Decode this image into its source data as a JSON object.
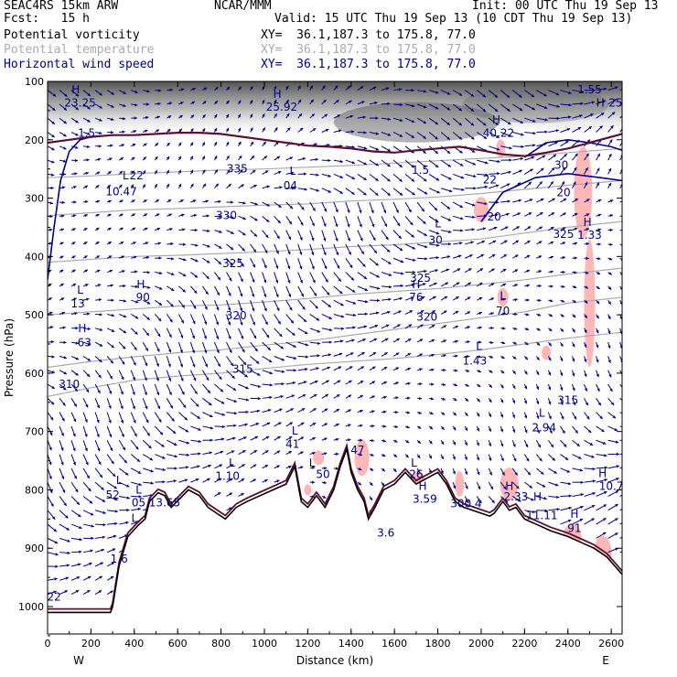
{
  "header": {
    "model": "SEAC4RS 15km ARW",
    "org": "NCAR/MMM",
    "init": "Init: 00 UTC Thu 19 Sep 13",
    "fcst": "Fcst:   15 h",
    "valid": "Valid: 15 UTC Thu 19 Sep 13 (10 CDT Thu 19 Sep 13)"
  },
  "fields": [
    {
      "name": "Potential vorticity",
      "xy": "XY=  36.1,187.3 to 175.8, 77.0"
    },
    {
      "name": "Potential temperature",
      "xy": "XY=  36.1,187.3 to 175.8, 77.0"
    },
    {
      "name": "Horizontal wind speed",
      "xy": "XY=  36.1,187.3 to 175.8, 77.0"
    }
  ],
  "colors": {
    "pv": "#000000",
    "theta": "#aaaaaa",
    "wind": "#000080",
    "pv_contour": "#5a1030",
    "shading": "#ffaaaa"
  },
  "chart_data": {
    "type": "cross-section",
    "xlabel": "Distance (km)",
    "ylabel": "Pressure (hPa)",
    "xlim": [
      0,
      2650
    ],
    "ylim": [
      1050,
      100
    ],
    "x_ticks": [
      0,
      200,
      400,
      600,
      800,
      1000,
      1200,
      1400,
      1600,
      1800,
      2000,
      2200,
      2400,
      2600
    ],
    "y_ticks": [
      100,
      200,
      300,
      400,
      500,
      600,
      700,
      800,
      900,
      1000
    ],
    "x_end_labels": {
      "left": "W",
      "right": "E"
    },
    "terrain": [
      [
        0,
        1010
      ],
      [
        290,
        1010
      ],
      [
        300,
        1000
      ],
      [
        330,
        930
      ],
      [
        370,
        880
      ],
      [
        420,
        860
      ],
      [
        450,
        850
      ],
      [
        470,
        820
      ],
      [
        510,
        805
      ],
      [
        540,
        810
      ],
      [
        570,
        830
      ],
      [
        610,
        815
      ],
      [
        650,
        800
      ],
      [
        700,
        810
      ],
      [
        740,
        830
      ],
      [
        780,
        840
      ],
      [
        820,
        850
      ],
      [
        870,
        830
      ],
      [
        920,
        820
      ],
      [
        980,
        810
      ],
      [
        1040,
        800
      ],
      [
        1100,
        790
      ],
      [
        1140,
        760
      ],
      [
        1170,
        820
      ],
      [
        1200,
        830
      ],
      [
        1240,
        810
      ],
      [
        1280,
        830
      ],
      [
        1320,
        800
      ],
      [
        1350,
        760
      ],
      [
        1380,
        730
      ],
      [
        1400,
        770
      ],
      [
        1430,
        800
      ],
      [
        1460,
        820
      ],
      [
        1480,
        850
      ],
      [
        1510,
        830
      ],
      [
        1550,
        800
      ],
      [
        1600,
        790
      ],
      [
        1650,
        770
      ],
      [
        1700,
        790
      ],
      [
        1750,
        780
      ],
      [
        1800,
        770
      ],
      [
        1840,
        790
      ],
      [
        1880,
        820
      ],
      [
        1920,
        830
      ],
      [
        1960,
        835
      ],
      [
        2000,
        840
      ],
      [
        2040,
        845
      ],
      [
        2060,
        840
      ],
      [
        2100,
        820
      ],
      [
        2130,
        835
      ],
      [
        2160,
        830
      ],
      [
        2200,
        850
      ],
      [
        2260,
        860
      ],
      [
        2320,
        870
      ],
      [
        2400,
        880
      ],
      [
        2460,
        890
      ],
      [
        2520,
        900
      ],
      [
        2580,
        915
      ],
      [
        2650,
        945
      ]
    ],
    "theta_contours": [
      {
        "label": "310",
        "pts": [
          [
            0,
            640
          ],
          [
            200,
            625
          ],
          [
            400,
            612
          ],
          [
            600,
            605
          ],
          [
            800,
            600
          ],
          [
            1000,
            592
          ],
          [
            1200,
            585
          ],
          [
            1400,
            580
          ],
          [
            1600,
            575
          ],
          [
            1800,
            568
          ],
          [
            2000,
            560
          ],
          [
            2200,
            550
          ],
          [
            2400,
            540
          ],
          [
            2650,
            530
          ]
        ]
      },
      {
        "label": "315",
        "pts": [
          [
            0,
            590
          ],
          [
            200,
            580
          ],
          [
            400,
            572
          ],
          [
            600,
            565
          ],
          [
            800,
            560
          ],
          [
            1000,
            552
          ],
          [
            1200,
            545
          ],
          [
            1400,
            535
          ],
          [
            1600,
            525
          ],
          [
            1800,
            515
          ],
          [
            2000,
            505
          ],
          [
            2200,
            495
          ],
          [
            2400,
            480
          ],
          [
            2650,
            470
          ]
        ]
      },
      {
        "label": "320",
        "pts": [
          [
            0,
            500
          ],
          [
            200,
            495
          ],
          [
            400,
            490
          ],
          [
            600,
            485
          ],
          [
            800,
            483
          ],
          [
            1000,
            478
          ],
          [
            1200,
            472
          ],
          [
            1400,
            465
          ],
          [
            1600,
            460
          ],
          [
            1800,
            455
          ],
          [
            2000,
            448
          ],
          [
            2200,
            440
          ],
          [
            2400,
            430
          ],
          [
            2650,
            420
          ]
        ]
      },
      {
        "label": "325",
        "pts": [
          [
            0,
            410
          ],
          [
            200,
            405
          ],
          [
            400,
            400
          ],
          [
            600,
            398
          ],
          [
            800,
            395
          ],
          [
            1000,
            392
          ],
          [
            1200,
            388
          ],
          [
            1400,
            383
          ],
          [
            1600,
            380
          ],
          [
            1800,
            375
          ],
          [
            2000,
            370
          ],
          [
            2200,
            360
          ],
          [
            2400,
            350
          ],
          [
            2650,
            340
          ]
        ]
      },
      {
        "label": "330",
        "pts": [
          [
            0,
            330
          ],
          [
            200,
            325
          ],
          [
            400,
            320
          ],
          [
            600,
            318
          ],
          [
            800,
            315
          ],
          [
            1000,
            312
          ],
          [
            1200,
            310
          ],
          [
            1400,
            305
          ],
          [
            1600,
            302
          ],
          [
            1800,
            298
          ],
          [
            2000,
            292
          ],
          [
            2200,
            285
          ],
          [
            2400,
            278
          ],
          [
            2650,
            270
          ]
        ]
      },
      {
        "label": "335",
        "pts": [
          [
            0,
            265
          ],
          [
            200,
            262
          ],
          [
            400,
            258
          ],
          [
            600,
            255
          ],
          [
            800,
            252
          ],
          [
            1000,
            250
          ],
          [
            1200,
            247
          ],
          [
            1400,
            244
          ],
          [
            1600,
            240
          ],
          [
            1800,
            236
          ],
          [
            2000,
            232
          ],
          [
            2200,
            228
          ],
          [
            2400,
            222
          ],
          [
            2650,
            215
          ]
        ]
      }
    ],
    "tropopause_pv": [
      [
        0,
        205
      ],
      [
        100,
        200
      ],
      [
        200,
        195
      ],
      [
        300,
        192
      ],
      [
        400,
        192
      ],
      [
        500,
        190
      ],
      [
        600,
        188
      ],
      [
        700,
        188
      ],
      [
        800,
        190
      ],
      [
        900,
        195
      ],
      [
        1000,
        200
      ],
      [
        1100,
        205
      ],
      [
        1200,
        210
      ],
      [
        1300,
        212
      ],
      [
        1400,
        215
      ],
      [
        1500,
        220
      ],
      [
        1600,
        222
      ],
      [
        1700,
        218
      ],
      [
        1800,
        215
      ],
      [
        1900,
        212
      ],
      [
        2000,
        218
      ],
      [
        2100,
        225
      ],
      [
        2200,
        228
      ],
      [
        2300,
        222
      ],
      [
        2400,
        215
      ],
      [
        2500,
        205
      ],
      [
        2600,
        195
      ],
      [
        2650,
        190
      ]
    ],
    "wind_contours": [
      {
        "label": "20",
        "pts": [
          [
            0,
            440
          ],
          [
            30,
            350
          ],
          [
            60,
            270
          ],
          [
            100,
            220
          ],
          [
            150,
            200
          ],
          [
            200,
            195
          ]
        ]
      },
      {
        "label": "30",
        "pts": [
          [
            2200,
            230
          ],
          [
            2300,
            205
          ],
          [
            2400,
            200
          ],
          [
            2500,
            205
          ],
          [
            2600,
            212
          ],
          [
            2650,
            218
          ]
        ]
      },
      {
        "label": "20",
        "pts": [
          [
            2000,
            340
          ],
          [
            2100,
            290
          ],
          [
            2250,
            265
          ],
          [
            2400,
            258
          ],
          [
            2550,
            265
          ],
          [
            2650,
            270
          ]
        ]
      }
    ],
    "annotations": [
      {
        "text": "H",
        "x": 130,
        "p": 120
      },
      {
        "text": "23.25",
        "x": 150,
        "p": 143
      },
      {
        "text": "H",
        "x": 1060,
        "p": 128
      },
      {
        "text": "25.92",
        "x": 1080,
        "p": 150
      },
      {
        "text": "H",
        "x": 2070,
        "p": 172
      },
      {
        "text": "40.22",
        "x": 2080,
        "p": 195
      },
      {
        "text": "1.55",
        "x": 2500,
        "p": 120
      },
      {
        "text": "H",
        "x": 2550,
        "p": 143
      },
      {
        "text": "25",
        "x": 2620,
        "p": 143
      },
      {
        "text": "1.5",
        "x": 180,
        "p": 195
      },
      {
        "text": "L",
        "x": 360,
        "p": 268
      },
      {
        "text": "22",
        "x": 410,
        "p": 268
      },
      {
        "text": "10.47",
        "x": 340,
        "p": 295
      },
      {
        "text": "L",
        "x": 1130,
        "p": 260
      },
      {
        "text": "04",
        "x": 1120,
        "p": 285
      },
      {
        "text": "1.5",
        "x": 1720,
        "p": 258
      },
      {
        "text": "22",
        "x": 2040,
        "p": 275
      },
      {
        "text": "30",
        "x": 2370,
        "p": 250
      },
      {
        "text": "20",
        "x": 2380,
        "p": 297
      },
      {
        "text": "20",
        "x": 2060,
        "p": 338
      },
      {
        "text": "L",
        "x": 1800,
        "p": 350
      },
      {
        "text": "30",
        "x": 1790,
        "p": 378
      },
      {
        "text": "325",
        "x": 2380,
        "p": 368
      },
      {
        "text": "H",
        "x": 2490,
        "p": 348
      },
      {
        "text": "1.33",
        "x": 2500,
        "p": 370
      },
      {
        "text": "325",
        "x": 855,
        "p": 418
      },
      {
        "text": "330",
        "x": 825,
        "p": 336
      },
      {
        "text": "335",
        "x": 875,
        "p": 256
      },
      {
        "text": "L",
        "x": 150,
        "p": 464
      },
      {
        "text": "13",
        "x": 140,
        "p": 487
      },
      {
        "text": "H",
        "x": 430,
        "p": 454
      },
      {
        "text": "90",
        "x": 440,
        "p": 476
      },
      {
        "text": "325",
        "x": 1720,
        "p": 443
      },
      {
        "text": "H",
        "x": 1700,
        "p": 454
      },
      {
        "text": "76",
        "x": 1700,
        "p": 476
      },
      {
        "text": "L",
        "x": 2100,
        "p": 474
      },
      {
        "text": "70",
        "x": 2100,
        "p": 500
      },
      {
        "text": "320",
        "x": 870,
        "p": 508
      },
      {
        "text": "320",
        "x": 1750,
        "p": 510
      },
      {
        "text": "H",
        "x": 160,
        "p": 530
      },
      {
        "text": "63",
        "x": 170,
        "p": 554
      },
      {
        "text": "L",
        "x": 1990,
        "p": 560
      },
      {
        "text": "1.43",
        "x": 1970,
        "p": 585
      },
      {
        "text": "315",
        "x": 900,
        "p": 599
      },
      {
        "text": "310",
        "x": 100,
        "p": 625
      },
      {
        "text": "315",
        "x": 2400,
        "p": 653
      },
      {
        "text": "L",
        "x": 2280,
        "p": 675
      },
      {
        "text": "2.94",
        "x": 2290,
        "p": 700
      },
      {
        "text": "L",
        "x": 1140,
        "p": 705
      },
      {
        "text": "41",
        "x": 1130,
        "p": 728
      },
      {
        "text": "47",
        "x": 1430,
        "p": 738
      },
      {
        "text": "L",
        "x": 1220,
        "p": 760
      },
      {
        "text": "L",
        "x": 850,
        "p": 760
      },
      {
        "text": "1.10",
        "x": 830,
        "p": 783
      },
      {
        "text": "50",
        "x": 1270,
        "p": 780
      },
      {
        "text": "L",
        "x": 1690,
        "p": 760
      },
      {
        "text": "26",
        "x": 1700,
        "p": 780
      },
      {
        "text": "H",
        "x": 2560,
        "p": 778
      },
      {
        "text": "10.7",
        "x": 2600,
        "p": 800
      },
      {
        "text": "L",
        "x": 330,
        "p": 790
      },
      {
        "text": "52",
        "x": 300,
        "p": 815
      },
      {
        "text": "L",
        "x": 420,
        "p": 806
      },
      {
        "text": "05",
        "x": 420,
        "p": 828
      },
      {
        "text": "13.65",
        "x": 540,
        "p": 828
      },
      {
        "text": "H",
        "x": 1730,
        "p": 800
      },
      {
        "text": "3.59",
        "x": 1740,
        "p": 822
      },
      {
        "text": "H",
        "x": 2130,
        "p": 800
      },
      {
        "text": "2.33",
        "x": 2160,
        "p": 818
      },
      {
        "text": "H",
        "x": 2260,
        "p": 818
      },
      {
        "text": "300.4",
        "x": 1930,
        "p": 830
      },
      {
        "text": "11.11",
        "x": 2280,
        "p": 850
      },
      {
        "text": "H",
        "x": 2430,
        "p": 848
      },
      {
        "text": "91",
        "x": 2430,
        "p": 872
      },
      {
        "text": "L",
        "x": 400,
        "p": 855
      },
      {
        "text": "1.6",
        "x": 330,
        "p": 925
      },
      {
        "text": "3.6",
        "x": 1560,
        "p": 880
      },
      {
        "text": "22",
        "x": 30,
        "p": 990
      }
    ]
  }
}
